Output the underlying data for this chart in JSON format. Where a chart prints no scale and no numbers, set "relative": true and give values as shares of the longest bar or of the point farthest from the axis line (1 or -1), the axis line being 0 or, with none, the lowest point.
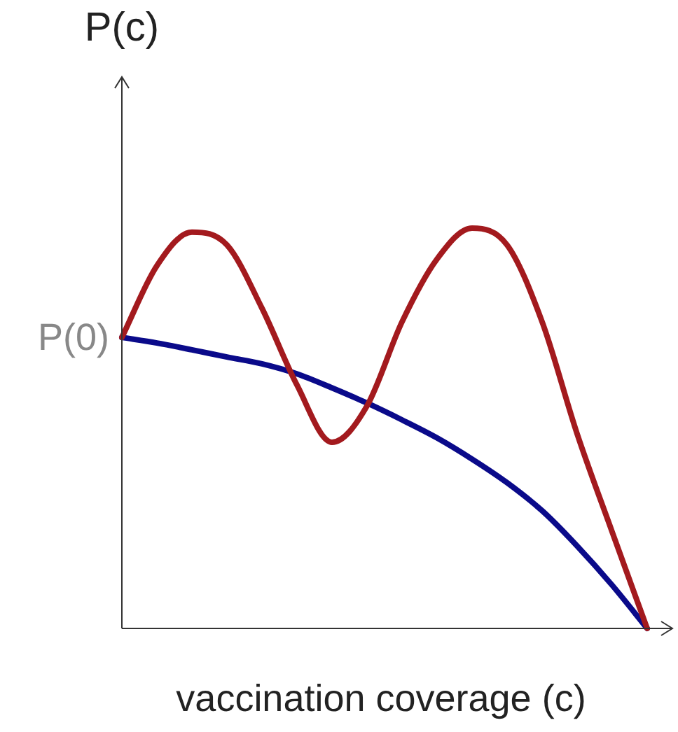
{
  "chart_data": {
    "type": "line",
    "relative": true,
    "xlabel": "vaccination coverage (c)",
    "ylabel": "P(c)",
    "categories": [
      null,
      null,
      null,
      null,
      null,
      null,
      null,
      null,
      null,
      null,
      null,
      null,
      null,
      null,
      null,
      null
    ],
    "series": [
      {
        "color": "#a31a1e",
        "values": [
          0.727,
          0.906,
          0.99,
          0.958,
          0.8,
          0.608,
          0.465,
          0.556,
          0.766,
          0.923,
          1.0,
          0.958,
          0.766,
          0.486,
          0.241,
          0
        ]
      },
      {
        "color": "#0a0a8a",
        "values": [
          0.727,
          0.713,
          0.696,
          0.678,
          0.661,
          0.636,
          0.601,
          0.563,
          0.521,
          0.476,
          0.423,
          0.364,
          0.294,
          0.206,
          0.108,
          0
        ]
      }
    ],
    "annotations": [
      "P(0)"
    ],
    "legend": false,
    "marker": "none",
    "line_style": "solid"
  }
}
